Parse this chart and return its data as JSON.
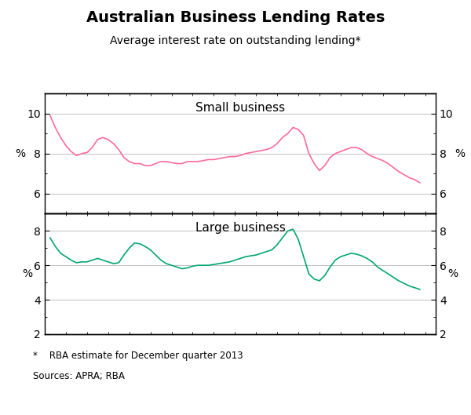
{
  "title": "Australian Business Lending Rates",
  "subtitle": "Average interest rate on outstanding lending*",
  "footnote": "*    RBA estimate for December quarter 2013",
  "sources": "Sources: APRA; RBA",
  "small_business_label": "Small business",
  "large_business_label": "Large business",
  "ylabel_left": "%",
  "ylabel_right": "%",
  "small_color": "#FF69A0",
  "large_color": "#00A86B",
  "small_ylim": [
    5,
    11
  ],
  "large_ylim": [
    2,
    9
  ],
  "small_yticks": [
    6,
    8,
    10
  ],
  "large_yticks": [
    2,
    4,
    6,
    8
  ],
  "xmin": 1996.0,
  "xmax": 2014.5,
  "xticks": [
    1998,
    2002,
    2006,
    2010,
    2014
  ],
  "small_business_data": {
    "x": [
      1996.25,
      1996.5,
      1996.75,
      1997.0,
      1997.25,
      1997.5,
      1997.75,
      1998.0,
      1998.25,
      1998.5,
      1998.75,
      1999.0,
      1999.25,
      1999.5,
      1999.75,
      2000.0,
      2000.25,
      2000.5,
      2000.75,
      2001.0,
      2001.25,
      2001.5,
      2001.75,
      2002.0,
      2002.25,
      2002.5,
      2002.75,
      2003.0,
      2003.25,
      2003.5,
      2003.75,
      2004.0,
      2004.25,
      2004.5,
      2004.75,
      2005.0,
      2005.25,
      2005.5,
      2005.75,
      2006.0,
      2006.25,
      2006.5,
      2006.75,
      2007.0,
      2007.25,
      2007.5,
      2007.75,
      2008.0,
      2008.25,
      2008.5,
      2008.75,
      2009.0,
      2009.25,
      2009.5,
      2009.75,
      2010.0,
      2010.25,
      2010.5,
      2010.75,
      2011.0,
      2011.25,
      2011.5,
      2011.75,
      2012.0,
      2012.25,
      2012.5,
      2012.75,
      2013.0,
      2013.25,
      2013.5,
      2013.75
    ],
    "y": [
      9.9,
      9.3,
      8.8,
      8.4,
      8.1,
      7.9,
      8.0,
      8.05,
      8.3,
      8.7,
      8.8,
      8.7,
      8.5,
      8.2,
      7.8,
      7.6,
      7.5,
      7.5,
      7.4,
      7.4,
      7.5,
      7.6,
      7.6,
      7.55,
      7.5,
      7.5,
      7.6,
      7.6,
      7.6,
      7.65,
      7.7,
      7.7,
      7.75,
      7.8,
      7.85,
      7.85,
      7.9,
      8.0,
      8.05,
      8.1,
      8.15,
      8.2,
      8.3,
      8.5,
      8.8,
      9.0,
      9.3,
      9.2,
      8.9,
      8.0,
      7.5,
      7.15,
      7.4,
      7.8,
      8.0,
      8.1,
      8.2,
      8.3,
      8.3,
      8.2,
      8.0,
      7.85,
      7.75,
      7.65,
      7.5,
      7.3,
      7.1,
      6.95,
      6.8,
      6.7,
      6.55
    ]
  },
  "large_business_data": {
    "x": [
      1996.25,
      1996.5,
      1996.75,
      1997.0,
      1997.25,
      1997.5,
      1997.75,
      1998.0,
      1998.25,
      1998.5,
      1998.75,
      1999.0,
      1999.25,
      1999.5,
      1999.75,
      2000.0,
      2000.25,
      2000.5,
      2000.75,
      2001.0,
      2001.25,
      2001.5,
      2001.75,
      2002.0,
      2002.25,
      2002.5,
      2002.75,
      2003.0,
      2003.25,
      2003.5,
      2003.75,
      2004.0,
      2004.25,
      2004.5,
      2004.75,
      2005.0,
      2005.25,
      2005.5,
      2005.75,
      2006.0,
      2006.25,
      2006.5,
      2006.75,
      2007.0,
      2007.25,
      2007.5,
      2007.75,
      2008.0,
      2008.25,
      2008.5,
      2008.75,
      2009.0,
      2009.25,
      2009.5,
      2009.75,
      2010.0,
      2010.25,
      2010.5,
      2010.75,
      2011.0,
      2011.25,
      2011.5,
      2011.75,
      2012.0,
      2012.25,
      2012.5,
      2012.75,
      2013.0,
      2013.25,
      2013.5,
      2013.75
    ],
    "y": [
      7.6,
      7.1,
      6.7,
      6.5,
      6.3,
      6.15,
      6.2,
      6.2,
      6.3,
      6.4,
      6.3,
      6.2,
      6.1,
      6.15,
      6.6,
      7.0,
      7.3,
      7.25,
      7.1,
      6.9,
      6.6,
      6.3,
      6.1,
      6.0,
      5.9,
      5.8,
      5.85,
      5.95,
      6.0,
      6.0,
      6.0,
      6.05,
      6.1,
      6.15,
      6.2,
      6.3,
      6.4,
      6.5,
      6.55,
      6.6,
      6.7,
      6.8,
      6.9,
      7.2,
      7.6,
      8.0,
      8.1,
      7.5,
      6.5,
      5.5,
      5.2,
      5.1,
      5.4,
      5.9,
      6.3,
      6.5,
      6.6,
      6.7,
      6.65,
      6.55,
      6.4,
      6.2,
      5.9,
      5.7,
      5.5,
      5.3,
      5.1,
      4.95,
      4.8,
      4.7,
      4.6
    ]
  }
}
